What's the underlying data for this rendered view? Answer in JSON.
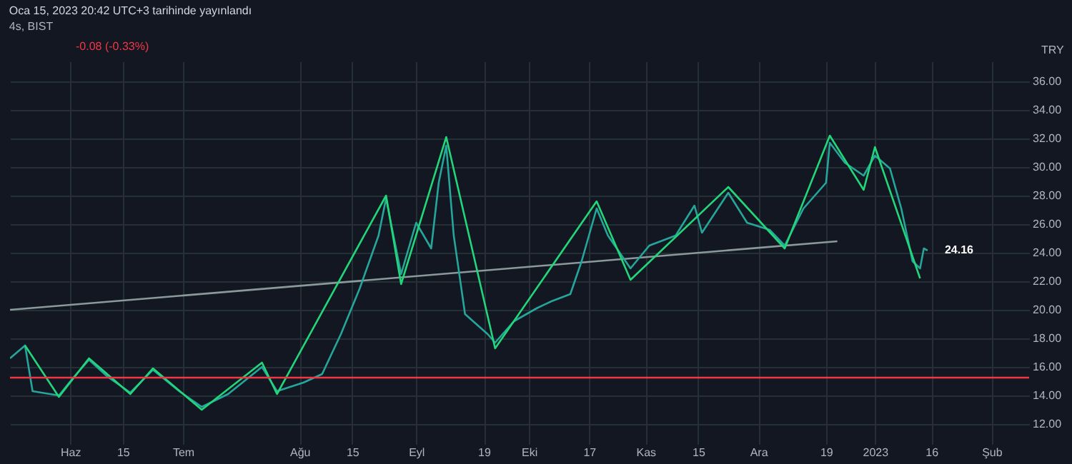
{
  "chart_data": {
    "type": "line",
    "title": "Oca 15, 2023 20:42 UTC+3 tarihinde yayınlandı",
    "subtitle": "4s, BIST",
    "ylabel": "TRY",
    "annotations": [
      "-0.08 (-0.33%)",
      {
        "text": "24.16",
        "x": "2023-01-15",
        "y": 24.16
      }
    ],
    "xlim": [
      "2022-05-16",
      "2023-02-11"
    ],
    "xticks": [
      {
        "value": "2022-06-01",
        "label": "Haz"
      },
      {
        "value": "2022-06-15",
        "label": "15"
      },
      {
        "value": "2022-07-01",
        "label": "Tem"
      },
      {
        "value": "2022-08-01",
        "label": "Ağu"
      },
      {
        "value": "2022-08-15",
        "label": "15"
      },
      {
        "value": "2022-09-01",
        "label": "Eyl"
      },
      {
        "value": "2022-09-19",
        "label": "19"
      },
      {
        "value": "2022-10-01",
        "label": "Eki"
      },
      {
        "value": "2022-10-17",
        "label": "17"
      },
      {
        "value": "2022-11-01",
        "label": "Kas"
      },
      {
        "value": "2022-11-15",
        "label": "15"
      },
      {
        "value": "2022-12-01",
        "label": "Ara"
      },
      {
        "value": "2022-12-19",
        "label": "19"
      },
      {
        "value": "2023-01-01",
        "label": "2023"
      },
      {
        "value": "2023-01-16",
        "label": "16"
      },
      {
        "value": "2023-02-01",
        "label": "Şub"
      }
    ],
    "ylim": [
      10.6,
      37.4
    ],
    "yticks": [
      {
        "value": 12,
        "label": "12.00"
      },
      {
        "value": 14,
        "label": "14.00"
      },
      {
        "value": 16,
        "label": "16.00"
      },
      {
        "value": 18,
        "label": "18.00"
      },
      {
        "value": 20,
        "label": "20.00"
      },
      {
        "value": 22,
        "label": "22.00"
      },
      {
        "value": 24,
        "label": "24.00"
      },
      {
        "value": 26,
        "label": "26.00"
      },
      {
        "value": 28,
        "label": "28.00"
      },
      {
        "value": 30,
        "label": "30.00"
      },
      {
        "value": 32,
        "label": "32.00"
      },
      {
        "value": 34,
        "label": "34.00"
      },
      {
        "value": 36,
        "label": "36.00"
      }
    ],
    "grid": true,
    "ref_lines": [
      {
        "axis": "y",
        "value": 15.25,
        "color": "#f23645"
      }
    ],
    "series": [
      {
        "color": "#8a9a9a",
        "x": [
          "2022-05-16",
          "2022-12-22"
        ],
        "values": [
          20.0,
          24.8
        ]
      },
      {
        "color": "#26a69a",
        "x": [
          "2022-05-16",
          "2022-05-20",
          "2022-05-22",
          "2022-05-29",
          "2022-06-02",
          "2022-06-06",
          "2022-06-11",
          "2022-06-17",
          "2022-06-23",
          "2022-06-30",
          "2022-07-06",
          "2022-07-13",
          "2022-07-22",
          "2022-07-26",
          "2022-08-02",
          "2022-08-07",
          "2022-08-12",
          "2022-08-17",
          "2022-08-22",
          "2022-08-24",
          "2022-08-28",
          "2022-09-01",
          "2022-09-05",
          "2022-09-07",
          "2022-09-09",
          "2022-09-11",
          "2022-09-14",
          "2022-09-20",
          "2022-09-22",
          "2022-09-27",
          "2022-10-03",
          "2022-10-07",
          "2022-10-12",
          "2022-10-15",
          "2022-10-19",
          "2022-10-22",
          "2022-10-28",
          "2022-11-02",
          "2022-11-09",
          "2022-11-14",
          "2022-11-16",
          "2022-11-23",
          "2022-11-28",
          "2022-12-04",
          "2022-12-08",
          "2022-12-13",
          "2022-12-19",
          "2022-12-20",
          "2022-12-24",
          "2022-12-29",
          "2023-01-01",
          "2023-01-05",
          "2023-01-08",
          "2023-01-11",
          "2023-01-13",
          "2023-01-14",
          "2023-01-15"
        ],
        "values": [
          16.6,
          17.5,
          14.3,
          14.0,
          15.3,
          16.5,
          15.3,
          14.2,
          15.8,
          14.3,
          13.2,
          14.1,
          16.0,
          14.3,
          14.9,
          15.5,
          18.3,
          21.5,
          25.2,
          27.8,
          22.5,
          26.1,
          24.3,
          28.9,
          31.5,
          25.2,
          19.7,
          18.3,
          17.7,
          19.2,
          20.1,
          20.6,
          21.1,
          23.4,
          27.1,
          25.2,
          22.9,
          24.5,
          25.2,
          27.3,
          25.4,
          28.2,
          26.1,
          25.6,
          24.5,
          27.1,
          28.9,
          31.7,
          30.3,
          29.4,
          30.8,
          29.9,
          27.1,
          23.4,
          22.9,
          24.3,
          24.16
        ]
      },
      {
        "color": "#22d67a",
        "x": [
          "2022-05-20",
          "2022-05-29",
          "2022-06-06",
          "2022-06-17",
          "2022-06-23",
          "2022-07-06",
          "2022-07-22",
          "2022-07-26",
          "2022-08-24",
          "2022-08-28",
          "2022-09-09",
          "2022-09-22",
          "2022-10-19",
          "2022-10-28",
          "2022-11-23",
          "2022-12-08",
          "2022-12-20",
          "2022-12-29",
          "2023-01-01",
          "2023-01-13"
        ],
        "values": [
          17.5,
          13.9,
          16.6,
          14.1,
          15.9,
          13.0,
          16.3,
          14.1,
          28.0,
          21.8,
          32.1,
          17.3,
          27.6,
          22.1,
          28.6,
          24.3,
          32.2,
          28.4,
          31.4,
          22.2
        ]
      }
    ]
  }
}
